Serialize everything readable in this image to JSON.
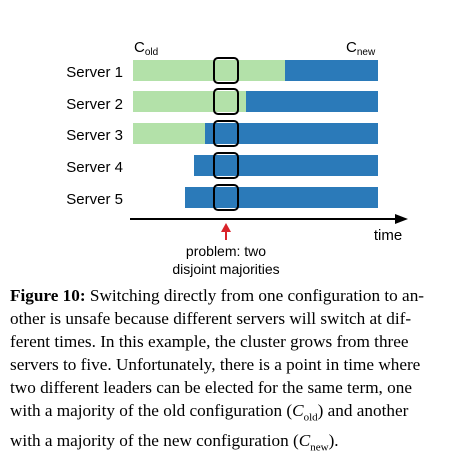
{
  "figure": {
    "c_old_base": "C",
    "c_old_sub": "old",
    "c_new_base": "C",
    "c_new_sub": "new",
    "servers": [
      {
        "label": "Server 1"
      },
      {
        "label": "Server 2"
      },
      {
        "label": "Server 3"
      },
      {
        "label": "Server 4"
      },
      {
        "label": "Server 5"
      }
    ],
    "time_label": "time",
    "problem_line1": "problem: two",
    "problem_line2": "disjoint majorities",
    "colors": {
      "old_config": "#b3e1a9",
      "new_config": "#2b7ab9",
      "marker_stroke": "#000000",
      "arrow": "#d9232a"
    }
  },
  "caption": {
    "label": "Figure 10:",
    "l1": "Switching directly from one configuration to an-",
    "l2": "other is unsafe because different servers will switch at dif-",
    "l3": "ferent times. In this example, the cluster grows from three",
    "l4": "servers to five. Unfortunately, there is a point in time where",
    "l5": "two different leaders can be elected for the same term, one",
    "l6a": "with a majority of the old configuration (",
    "c_base": "C",
    "old_sub": "old",
    "l6b": ") and another",
    "l7a": "with a majority of the new configuration (",
    "new_sub": "new",
    "l7b": ")."
  }
}
